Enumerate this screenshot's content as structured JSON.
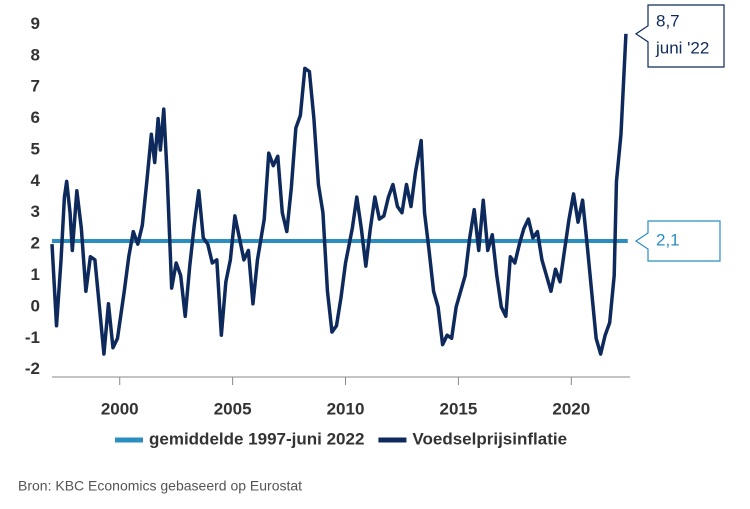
{
  "chart_data": {
    "type": "line",
    "source": "Bron: KBC Economics gebaseerd op Eurostat",
    "xlim": [
      1997,
      2022.6
    ],
    "xticks": [
      2000,
      2005,
      2010,
      2015,
      2020
    ],
    "ylim": [
      -2.2,
      9.3
    ],
    "yticks": [
      -2,
      -1,
      0,
      1,
      2,
      3,
      4,
      5,
      6,
      7,
      8,
      9
    ],
    "series": [
      {
        "name": "gemiddelde 1997-juni 2022",
        "color": "#2a8ec1",
        "x": [
          1997,
          2022.5
        ],
        "values": [
          2.1,
          2.1
        ]
      },
      {
        "name": "Voedselprijsinflatie",
        "color": "#0e2a5c",
        "x": [
          1997.0,
          1997.2,
          1997.4,
          1997.55,
          1997.65,
          1997.8,
          1997.9,
          1998.1,
          1998.3,
          1998.5,
          1998.7,
          1998.9,
          1999.1,
          1999.3,
          1999.5,
          1999.7,
          1999.9,
          2000.2,
          2000.4,
          2000.6,
          2000.8,
          2001.0,
          2001.2,
          2001.4,
          2001.55,
          2001.7,
          2001.8,
          2001.95,
          2002.1,
          2002.3,
          2002.5,
          2002.7,
          2002.9,
          2003.1,
          2003.3,
          2003.5,
          2003.7,
          2003.9,
          2004.1,
          2004.3,
          2004.5,
          2004.7,
          2004.9,
          2005.1,
          2005.3,
          2005.5,
          2005.7,
          2005.9,
          2006.1,
          2006.4,
          2006.6,
          2006.8,
          2007.0,
          2007.2,
          2007.4,
          2007.6,
          2007.8,
          2008.0,
          2008.2,
          2008.4,
          2008.6,
          2008.8,
          2009.0,
          2009.2,
          2009.4,
          2009.6,
          2009.8,
          2010.0,
          2010.3,
          2010.5,
          2010.7,
          2010.9,
          2011.1,
          2011.3,
          2011.5,
          2011.7,
          2011.9,
          2012.1,
          2012.3,
          2012.5,
          2012.7,
          2012.9,
          2013.1,
          2013.35,
          2013.5,
          2013.7,
          2013.9,
          2014.1,
          2014.3,
          2014.5,
          2014.7,
          2014.9,
          2015.1,
          2015.3,
          2015.5,
          2015.7,
          2015.9,
          2016.1,
          2016.3,
          2016.5,
          2016.7,
          2016.9,
          2017.1,
          2017.3,
          2017.5,
          2017.7,
          2017.9,
          2018.1,
          2018.3,
          2018.5,
          2018.7,
          2018.9,
          2019.1,
          2019.3,
          2019.5,
          2019.7,
          2019.9,
          2020.1,
          2020.3,
          2020.5,
          2020.7,
          2020.9,
          2021.1,
          2021.3,
          2021.5,
          2021.7,
          2021.9,
          2022.0,
          2022.2,
          2022.42
        ],
        "values": [
          2.0,
          -0.6,
          1.5,
          3.5,
          4.0,
          3.0,
          1.8,
          3.7,
          2.5,
          0.5,
          1.6,
          1.5,
          0.0,
          -1.5,
          0.1,
          -1.3,
          -1.0,
          0.5,
          1.6,
          2.4,
          2.0,
          2.6,
          4.0,
          5.5,
          4.6,
          6.0,
          5.0,
          6.3,
          4.2,
          0.6,
          1.4,
          1.0,
          -0.3,
          1.3,
          2.6,
          3.7,
          2.2,
          2.0,
          1.4,
          1.5,
          -0.9,
          0.8,
          1.5,
          2.9,
          2.2,
          1.5,
          1.8,
          0.1,
          1.5,
          2.8,
          4.9,
          4.5,
          4.8,
          3.0,
          2.4,
          3.8,
          5.7,
          6.1,
          7.6,
          7.5,
          6.0,
          3.9,
          3.0,
          0.5,
          -0.8,
          -0.6,
          0.3,
          1.4,
          2.5,
          3.5,
          2.5,
          1.3,
          2.5,
          3.5,
          2.8,
          2.9,
          3.5,
          3.9,
          3.2,
          3.0,
          3.9,
          3.2,
          4.3,
          5.3,
          3.0,
          1.8,
          0.5,
          0.0,
          -1.2,
          -0.9,
          -1.0,
          0.0,
          0.5,
          1.0,
          2.2,
          3.1,
          1.8,
          3.4,
          1.8,
          2.3,
          1.0,
          0.0,
          -0.3,
          1.6,
          1.4,
          2.0,
          2.5,
          2.8,
          2.2,
          2.4,
          1.5,
          1.0,
          0.5,
          1.2,
          0.8,
          1.8,
          2.8,
          3.6,
          2.7,
          3.4,
          2.0,
          0.5,
          -1.0,
          -1.5,
          -0.9,
          -0.5,
          1.0,
          4.0,
          5.5,
          8.7
        ]
      }
    ],
    "annotations": [
      {
        "label": "2,1",
        "y": 2.1
      },
      {
        "label": "8,7",
        "sublabel": "juni '22",
        "y": 8.7
      }
    ]
  }
}
